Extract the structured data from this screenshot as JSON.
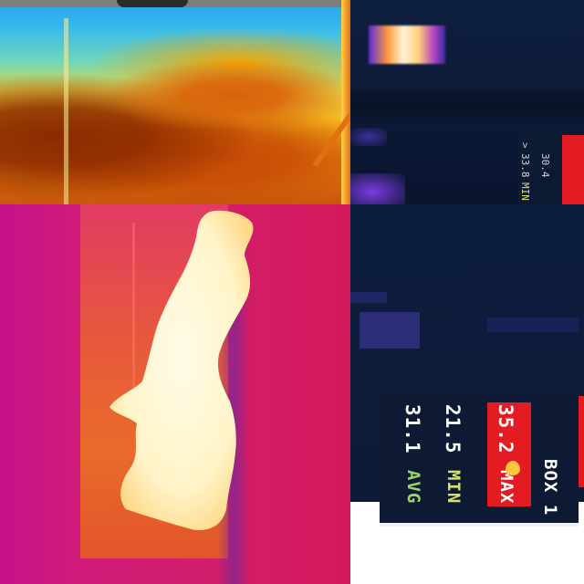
{
  "tiles": {
    "top_right_overlay": {
      "min_label": "MIN",
      "max_prefix": ">",
      "max_value": "33.8",
      "temp_value": "30.4"
    },
    "bottom_right_hud": {
      "avg_label": "AVG",
      "avg_value": "31.1",
      "min_label": "MIN",
      "min_value": "21.5",
      "max_label": "MAX",
      "max_value": "35.2",
      "box_label": "BOX 1"
    }
  },
  "colors": {
    "hud_background": "#0e1a33",
    "hud_max_highlight": "#e31b23",
    "avg_label_color": "#9ed36a",
    "min_label_color": "#d7e06a",
    "max_label_color": "#ffffff"
  },
  "icons": {
    "max_indicator": "flame-icon"
  }
}
